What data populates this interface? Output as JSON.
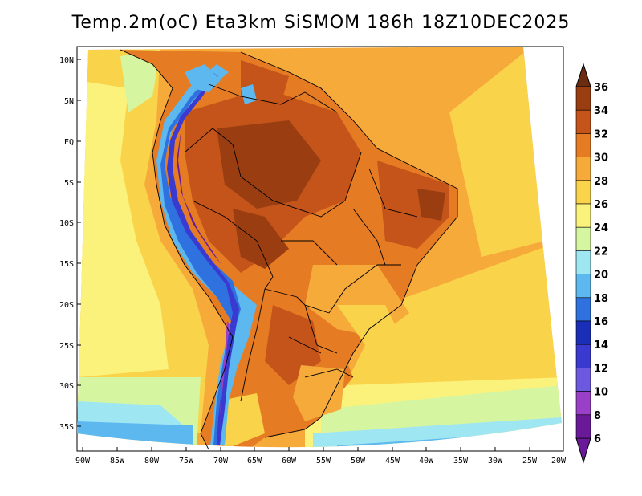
{
  "title": "Temp.2m(oC) Eta3km SiSMOM 186h 18Z10DEC2025",
  "axes": {
    "lat_labels": [
      "10N",
      "5N",
      "EQ",
      "5S",
      "10S",
      "15S",
      "20S",
      "25S",
      "30S",
      "35S"
    ],
    "lon_labels": [
      "90W",
      "85W",
      "80W",
      "75W",
      "70W",
      "65W",
      "60W",
      "55W",
      "50W",
      "45W",
      "40W",
      "35W",
      "30W",
      "25W",
      "20W"
    ]
  },
  "colorbar": {
    "labels": [
      "36",
      "34",
      "32",
      "30",
      "28",
      "26",
      "24",
      "22",
      "20",
      "18",
      "16",
      "14",
      "12",
      "10",
      "8",
      "6"
    ],
    "bins": [
      {
        "color": "#6b2c10"
      },
      {
        "color": "#9a3e12"
      },
      {
        "color": "#c4541a"
      },
      {
        "color": "#e57b22"
      },
      {
        "color": "#f6aa3a"
      },
      {
        "color": "#f9d34a"
      },
      {
        "color": "#fbf27c"
      },
      {
        "color": "#d6f5a0"
      },
      {
        "color": "#9fe6f3"
      },
      {
        "color": "#5cb8ef"
      },
      {
        "color": "#2f72df"
      },
      {
        "color": "#1a2fb8"
      },
      {
        "color": "#3b3ad0"
      },
      {
        "color": "#6d58e0"
      },
      {
        "color": "#9a3fc7"
      },
      {
        "color": "#6a1a98"
      }
    ]
  }
}
